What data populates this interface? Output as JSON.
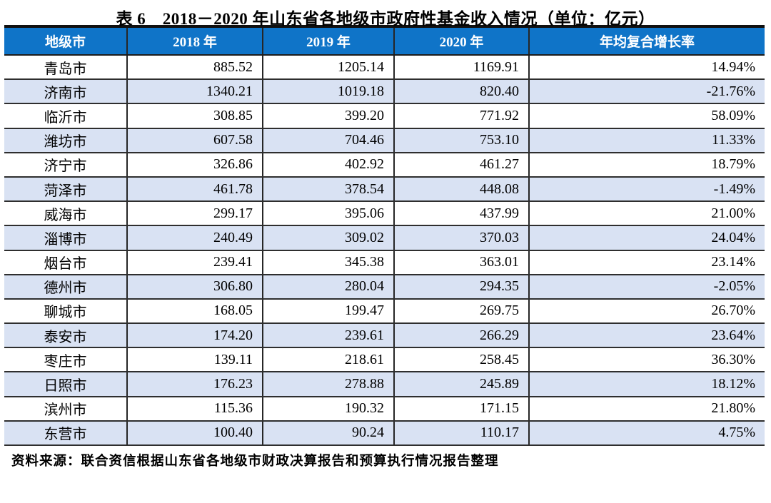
{
  "title": "表 6　2018－2020 年山东省各地级市政府性基金收入情况（单位：亿元）",
  "source_note": "资料来源：联合资信根据山东省各地级市财政决算报告和预算执行情况报告整理",
  "colors": {
    "header_bg": "#0F74C8",
    "header_text": "#FFFFFF",
    "row_alt_bg": "#D9E2F3",
    "grid_line": "#262626"
  },
  "table": {
    "columns": [
      "地级市",
      "2018 年",
      "2019 年",
      "2020 年",
      "年均复合增长率"
    ],
    "rows": [
      {
        "city": "青岛市",
        "y2018": "885.52",
        "y2019": "1205.14",
        "y2020": "1169.91",
        "cagr": "14.94%"
      },
      {
        "city": "济南市",
        "y2018": "1340.21",
        "y2019": "1019.18",
        "y2020": "820.40",
        "cagr": "-21.76%"
      },
      {
        "city": "临沂市",
        "y2018": "308.85",
        "y2019": "399.20",
        "y2020": "771.92",
        "cagr": "58.09%"
      },
      {
        "city": "潍坊市",
        "y2018": "607.58",
        "y2019": "704.46",
        "y2020": "753.10",
        "cagr": "11.33%"
      },
      {
        "city": "济宁市",
        "y2018": "326.86",
        "y2019": "402.92",
        "y2020": "461.27",
        "cagr": "18.79%"
      },
      {
        "city": "菏泽市",
        "y2018": "461.78",
        "y2019": "378.54",
        "y2020": "448.08",
        "cagr": "-1.49%"
      },
      {
        "city": "威海市",
        "y2018": "299.17",
        "y2019": "395.06",
        "y2020": "437.99",
        "cagr": "21.00%"
      },
      {
        "city": "淄博市",
        "y2018": "240.49",
        "y2019": "309.02",
        "y2020": "370.03",
        "cagr": "24.04%"
      },
      {
        "city": "烟台市",
        "y2018": "239.41",
        "y2019": "345.38",
        "y2020": "363.01",
        "cagr": "23.14%"
      },
      {
        "city": "德州市",
        "y2018": "306.80",
        "y2019": "280.04",
        "y2020": "294.35",
        "cagr": "-2.05%"
      },
      {
        "city": "聊城市",
        "y2018": "168.05",
        "y2019": "199.47",
        "y2020": "269.75",
        "cagr": "26.70%"
      },
      {
        "city": "泰安市",
        "y2018": "174.20",
        "y2019": "239.61",
        "y2020": "266.29",
        "cagr": "23.64%"
      },
      {
        "city": "枣庄市",
        "y2018": "139.11",
        "y2019": "218.61",
        "y2020": "258.45",
        "cagr": "36.30%"
      },
      {
        "city": "日照市",
        "y2018": "176.23",
        "y2019": "278.88",
        "y2020": "245.89",
        "cagr": "18.12%"
      },
      {
        "city": "滨州市",
        "y2018": "115.36",
        "y2019": "190.32",
        "y2020": "171.15",
        "cagr": "21.80%"
      },
      {
        "city": "东营市",
        "y2018": "100.40",
        "y2019": "90.24",
        "y2020": "110.17",
        "cagr": "4.75%"
      }
    ]
  }
}
